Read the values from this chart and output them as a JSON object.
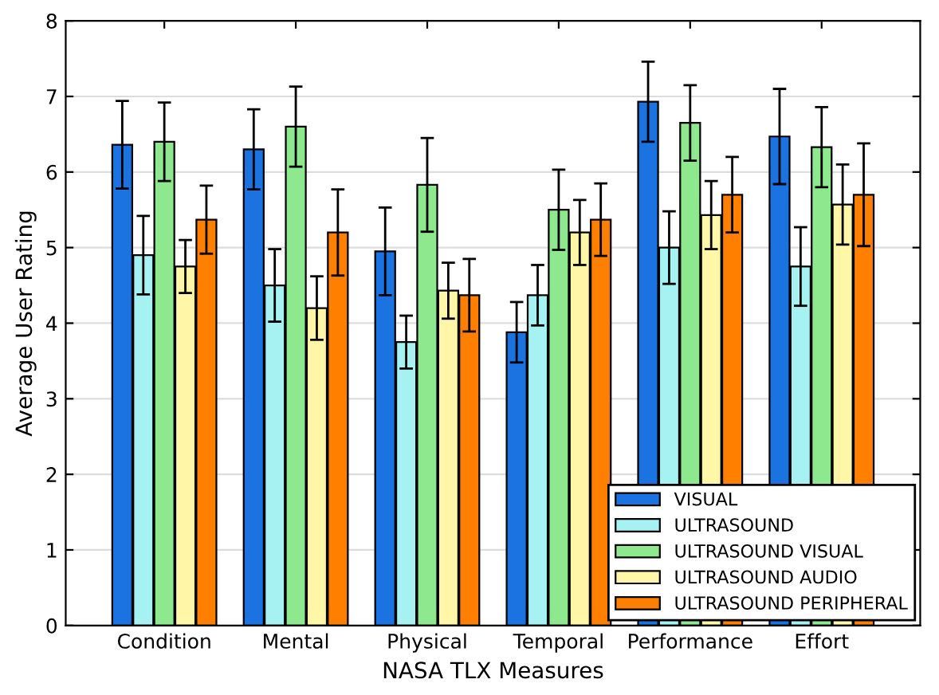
{
  "chart_data": {
    "type": "bar",
    "xlabel": "NASA TLX Measures",
    "ylabel": "Average User Rating",
    "categories": [
      "Condition",
      "Mental",
      "Physical",
      "Temporal",
      "Performance",
      "Effort"
    ],
    "series": [
      {
        "name": "VISUAL",
        "color": "#1a73e0",
        "values": [
          6.36,
          6.3,
          4.95,
          3.88,
          6.93,
          6.47
        ],
        "errors": [
          0.58,
          0.53,
          0.58,
          0.4,
          0.53,
          0.63
        ]
      },
      {
        "name": "ULTRASOUND",
        "color": "#a6f2f2",
        "values": [
          4.9,
          4.5,
          3.75,
          4.37,
          5.0,
          4.75
        ],
        "errors": [
          0.52,
          0.48,
          0.35,
          0.4,
          0.48,
          0.52
        ]
      },
      {
        "name": "ULTRASOUND VISUAL",
        "color": "#8ee88e",
        "values": [
          6.4,
          6.6,
          5.83,
          5.5,
          6.65,
          6.33
        ],
        "errors": [
          0.52,
          0.53,
          0.62,
          0.53,
          0.5,
          0.53
        ]
      },
      {
        "name": "ULTRASOUND AUDIO",
        "color": "#fff6a8",
        "values": [
          4.75,
          4.2,
          4.43,
          5.2,
          5.43,
          5.57
        ],
        "errors": [
          0.35,
          0.42,
          0.37,
          0.43,
          0.45,
          0.53
        ]
      },
      {
        "name": "ULTRASOUND PERIPHERAL",
        "color": "#ff8000",
        "values": [
          5.37,
          5.2,
          4.37,
          5.37,
          5.7,
          5.7
        ],
        "errors": [
          0.45,
          0.57,
          0.48,
          0.48,
          0.5,
          0.68
        ]
      }
    ],
    "ylim": [
      0,
      8
    ],
    "yticks": [
      0,
      1,
      2,
      3,
      4,
      5,
      6,
      7,
      8
    ],
    "grid": "y",
    "legend": "bottom right"
  }
}
